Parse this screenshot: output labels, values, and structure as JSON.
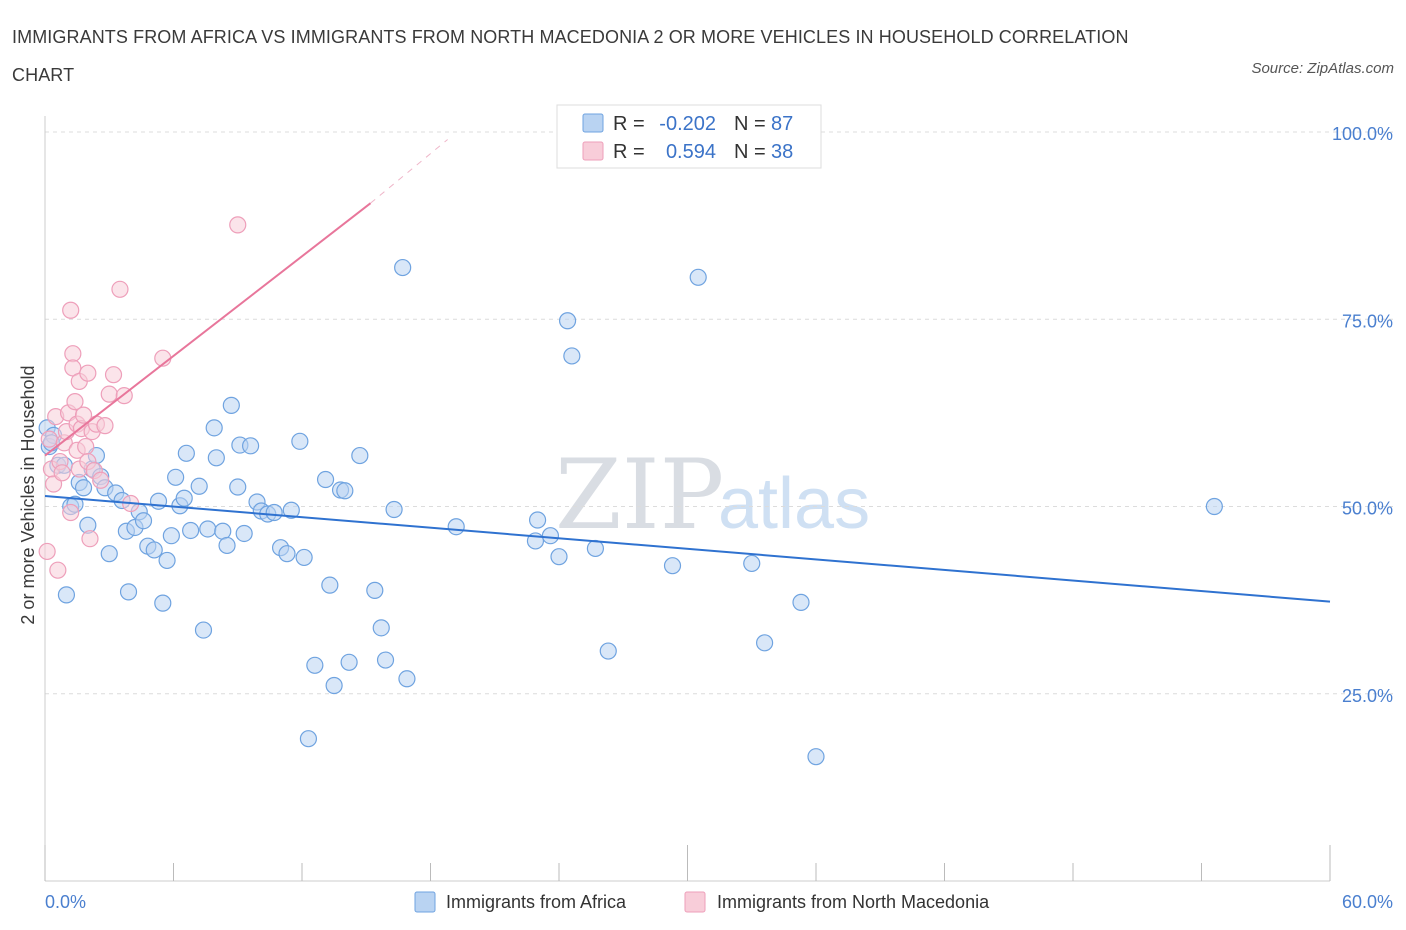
{
  "title": "IMMIGRANTS FROM AFRICA VS IMMIGRANTS FROM NORTH MACEDONIA 2 OR MORE VEHICLES IN HOUSEHOLD CORRELATION CHART",
  "source": "Source: ZipAtlas.com",
  "watermark": {
    "zip": "ZIP",
    "atlas": "atlas"
  },
  "legend_box": {
    "rows": [
      {
        "r_label": "R =",
        "r_value": "-0.202",
        "n_label": "N =",
        "n_value": "87"
      },
      {
        "r_label": "R =",
        "r_value": "0.594",
        "n_label": "N =",
        "n_value": "38"
      }
    ]
  },
  "chart_data": {
    "type": "scatter",
    "xlabel": "",
    "ylabel": "2 or more Vehicles in Household",
    "xlim": [
      0,
      60
    ],
    "ylim": [
      0,
      100
    ],
    "x_tick_labels": [
      "0.0%",
      "60.0%"
    ],
    "y_ticks": [
      {
        "value": 100,
        "label": "100.0%"
      },
      {
        "value": 75,
        "label": "75.0%"
      },
      {
        "value": 50,
        "label": "50.0%"
      },
      {
        "value": 25,
        "label": "25.0%"
      }
    ],
    "grid": true,
    "legend_position": "bottom",
    "series": [
      {
        "name": "Immigrants from Africa",
        "color": "#6fa3e0",
        "fill": "#b9d3f2",
        "stats": {
          "R": -0.202,
          "N": 87
        },
        "trend": {
          "x0": 0,
          "y0": 51.4,
          "x1": 60,
          "y1": 37.3,
          "color": "#2f72d0"
        },
        "points": [
          [
            0.1,
            60.5
          ],
          [
            0.2,
            58.0
          ],
          [
            0.4,
            59.5
          ],
          [
            0.6,
            55.5
          ],
          [
            0.9,
            55.5
          ],
          [
            1.0,
            38.2
          ],
          [
            1.2,
            50.0
          ],
          [
            1.4,
            50.3
          ],
          [
            1.6,
            53.2
          ],
          [
            1.8,
            52.5
          ],
          [
            2.0,
            47.5
          ],
          [
            2.2,
            55.0
          ],
          [
            2.4,
            56.8
          ],
          [
            2.6,
            54.0
          ],
          [
            2.8,
            52.5
          ],
          [
            3.0,
            43.7
          ],
          [
            3.3,
            51.8
          ],
          [
            3.6,
            50.8
          ],
          [
            3.8,
            46.7
          ],
          [
            3.9,
            38.6
          ],
          [
            4.2,
            47.2
          ],
          [
            4.4,
            49.3
          ],
          [
            4.6,
            48.1
          ],
          [
            4.8,
            44.7
          ],
          [
            5.1,
            44.2
          ],
          [
            5.3,
            50.7
          ],
          [
            5.5,
            37.1
          ],
          [
            5.7,
            42.8
          ],
          [
            5.9,
            46.1
          ],
          [
            6.1,
            53.9
          ],
          [
            6.3,
            50.1
          ],
          [
            6.5,
            51.1
          ],
          [
            6.6,
            57.1
          ],
          [
            6.8,
            46.8
          ],
          [
            7.2,
            52.7
          ],
          [
            7.4,
            33.5
          ],
          [
            7.6,
            47.0
          ],
          [
            7.9,
            60.5
          ],
          [
            8.0,
            56.5
          ],
          [
            8.3,
            46.7
          ],
          [
            8.5,
            44.8
          ],
          [
            8.7,
            63.5
          ],
          [
            9.0,
            52.6
          ],
          [
            9.1,
            58.2
          ],
          [
            9.3,
            46.4
          ],
          [
            9.6,
            58.1
          ],
          [
            9.9,
            50.6
          ],
          [
            10.1,
            49.4
          ],
          [
            10.4,
            49.0
          ],
          [
            10.7,
            49.2
          ],
          [
            11.0,
            44.5
          ],
          [
            11.3,
            43.7
          ],
          [
            11.5,
            49.5
          ],
          [
            11.9,
            58.7
          ],
          [
            12.1,
            43.2
          ],
          [
            12.3,
            19.0
          ],
          [
            12.6,
            28.8
          ],
          [
            13.1,
            53.6
          ],
          [
            13.3,
            39.5
          ],
          [
            13.5,
            26.1
          ],
          [
            13.8,
            52.2
          ],
          [
            14.0,
            52.1
          ],
          [
            14.2,
            29.2
          ],
          [
            14.7,
            56.8
          ],
          [
            15.4,
            38.8
          ],
          [
            15.7,
            33.8
          ],
          [
            15.9,
            29.5
          ],
          [
            16.3,
            49.6
          ],
          [
            16.7,
            81.9
          ],
          [
            16.9,
            27.0
          ],
          [
            19.2,
            47.3
          ],
          [
            22.9,
            45.4
          ],
          [
            23.0,
            48.2
          ],
          [
            23.6,
            46.1
          ],
          [
            24.0,
            43.3
          ],
          [
            24.4,
            74.8
          ],
          [
            24.6,
            70.1
          ],
          [
            25.7,
            44.4
          ],
          [
            26.3,
            30.7
          ],
          [
            29.3,
            42.1
          ],
          [
            30.5,
            80.6
          ],
          [
            33.0,
            42.4
          ],
          [
            33.6,
            31.8
          ],
          [
            35.3,
            37.2
          ],
          [
            36.0,
            16.6
          ],
          [
            54.6,
            50.0
          ],
          [
            0.3,
            58.5
          ]
        ]
      },
      {
        "name": "Immigrants from North Macedonia",
        "color": "#ee9fba",
        "fill": "#f8cdd9",
        "stats": {
          "R": 0.594,
          "N": 38
        },
        "trend": {
          "x0": 0,
          "y0": 56.8,
          "x1": 15.2,
          "y1": 90.5,
          "dash_to_x": 18.8,
          "dash_to_y": 99.0,
          "color": "#e8769b"
        },
        "points": [
          [
            0.1,
            44.0
          ],
          [
            0.2,
            59.0
          ],
          [
            0.3,
            55.0
          ],
          [
            0.4,
            53.0
          ],
          [
            0.5,
            62.0
          ],
          [
            0.6,
            41.5
          ],
          [
            0.7,
            56.0
          ],
          [
            0.8,
            54.5
          ],
          [
            0.9,
            58.5
          ],
          [
            1.0,
            60.0
          ],
          [
            1.1,
            62.5
          ],
          [
            1.2,
            49.2
          ],
          [
            1.2,
            76.2
          ],
          [
            1.3,
            70.4
          ],
          [
            1.3,
            68.5
          ],
          [
            1.4,
            64.0
          ],
          [
            1.5,
            61.0
          ],
          [
            1.5,
            57.5
          ],
          [
            1.6,
            55.0
          ],
          [
            1.6,
            66.7
          ],
          [
            1.7,
            60.4
          ],
          [
            1.8,
            62.2
          ],
          [
            1.9,
            58.0
          ],
          [
            2.0,
            56.0
          ],
          [
            2.0,
            67.8
          ],
          [
            2.1,
            45.7
          ],
          [
            2.2,
            60.0
          ],
          [
            2.3,
            54.8
          ],
          [
            2.4,
            61.0
          ],
          [
            2.6,
            53.5
          ],
          [
            3.0,
            65.0
          ],
          [
            3.2,
            67.6
          ],
          [
            3.5,
            79.0
          ],
          [
            3.7,
            64.8
          ],
          [
            4.0,
            50.4
          ],
          [
            5.5,
            69.8
          ],
          [
            9.0,
            87.6
          ],
          [
            2.8,
            60.8
          ]
        ]
      }
    ]
  }
}
